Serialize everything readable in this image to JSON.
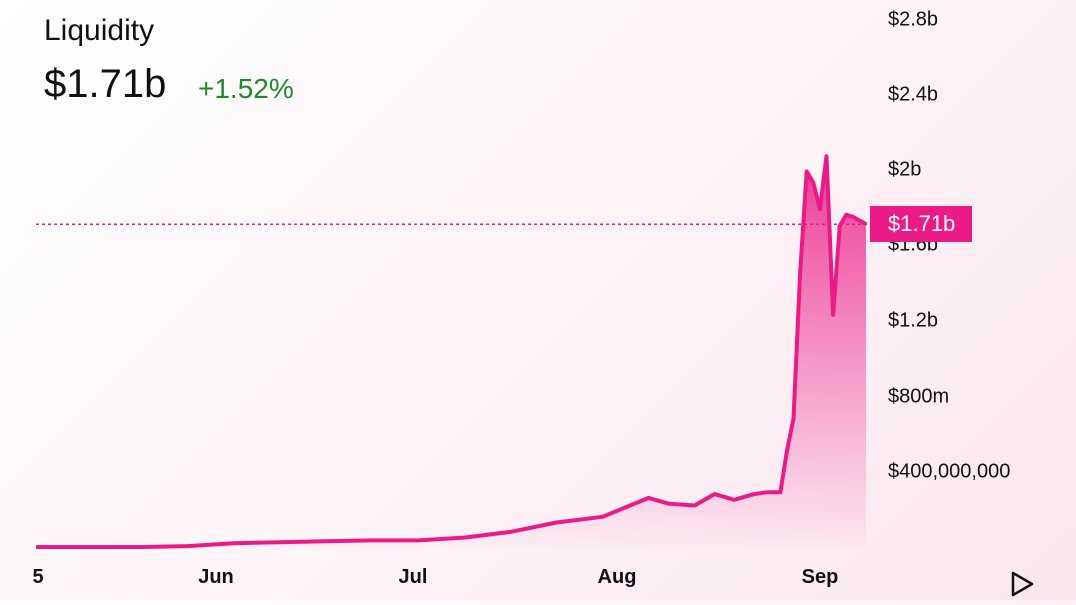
{
  "header": {
    "title": "Liquidity",
    "value": "$1.71b",
    "change": "+1.52%"
  },
  "current_badge": "$1.71b",
  "colors": {
    "line": "#ea1b86",
    "positive": "#1f8a2a",
    "badge": "#ea1b86"
  },
  "icons": {
    "playback": "play-icon"
  },
  "chart_data": {
    "type": "area",
    "title": "Liquidity",
    "y_ticks": [
      "$2.8b",
      "$2.4b",
      "$2b",
      "$1.6b",
      "$1.2b",
      "$800m",
      "$400,000,000"
    ],
    "x_ticks": [
      "5",
      "Jun",
      "Jul",
      "Aug",
      "Sep"
    ],
    "ylim": [
      0,
      2900000000
    ],
    "current_value": 1710000000,
    "current_line": "dotted",
    "grid": false,
    "x": [
      "2023-05-21",
      "2023-05-28",
      "2023-06-04",
      "2023-06-11",
      "2023-06-18",
      "2023-06-25",
      "2023-07-02",
      "2023-07-09",
      "2023-07-16",
      "2023-07-23",
      "2023-07-30",
      "2023-08-06",
      "2023-08-09",
      "2023-08-13",
      "2023-08-16",
      "2023-08-19",
      "2023-08-22",
      "2023-08-24",
      "2023-08-26",
      "2023-08-27",
      "2023-08-28",
      "2023-08-29",
      "2023-08-30",
      "2023-08-31",
      "2023-09-01",
      "2023-09-02",
      "2023-09-03",
      "2023-09-04",
      "2023-09-05",
      "2023-09-06",
      "2023-09-07",
      "2023-09-08"
    ],
    "values": [
      0,
      5000000,
      20000000,
      25000000,
      30000000,
      35000000,
      35000000,
      50000000,
      80000000,
      130000000,
      160000000,
      260000000,
      230000000,
      220000000,
      280000000,
      250000000,
      280000000,
      290000000,
      290000000,
      510000000,
      680000000,
      1450000000,
      1990000000,
      1930000000,
      1790000000,
      2070000000,
      1230000000,
      1700000000,
      1760000000,
      1750000000,
      1730000000,
      1710000000
    ]
  }
}
